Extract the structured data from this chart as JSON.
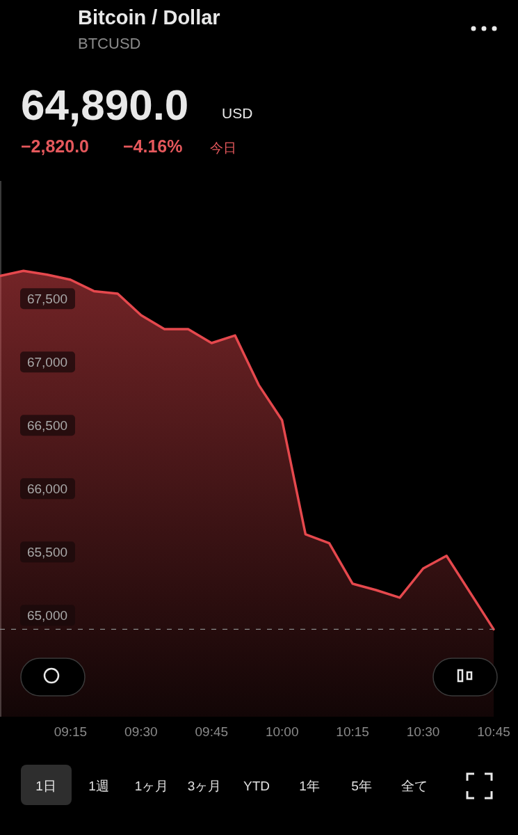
{
  "chart_data": {
    "type": "area",
    "title": "Bitcoin / Dollar",
    "subtitle": "BTCUSD",
    "annotations": [
      "64,890.0",
      "USD",
      "−2,820.0",
      "−4.16%",
      "今日",
      "1日",
      "1週",
      "1ヶ月",
      "3ヶ月",
      "YTD",
      "1年",
      "5年",
      "全て"
    ],
    "x": [
      9.0,
      9.083,
      9.167,
      9.25,
      9.333,
      9.417,
      9.5,
      9.583,
      9.667,
      9.75,
      9.833,
      9.917,
      10.0,
      10.083,
      10.167,
      10.25,
      10.333,
      10.417,
      10.5,
      10.583,
      10.75
    ],
    "series": [
      {
        "color": "#e5484d",
        "values": [
          67680,
          67720,
          67690,
          67650,
          67560,
          67540,
          67370,
          67260,
          67260,
          67150,
          67210,
          66820,
          66540,
          65640,
          65570,
          65250,
          65200,
          65140,
          65370,
          65470,
          64890
        ]
      }
    ],
    "xlim": [
      9.0,
      10.75
    ],
    "ylim": [
      64200,
      68430
    ],
    "xticks": [
      {
        "value": 9.25,
        "label": "09:15"
      },
      {
        "value": 9.5,
        "label": "09:30"
      },
      {
        "value": 9.75,
        "label": "09:45"
      },
      {
        "value": 10.0,
        "label": "10:00"
      },
      {
        "value": 10.25,
        "label": "10:15"
      },
      {
        "value": 10.5,
        "label": "10:30"
      },
      {
        "value": 10.75,
        "label": "10:45"
      }
    ],
    "yticks": [
      {
        "value": 65000,
        "label": "65,000"
      },
      {
        "value": 65500,
        "label": "65,500"
      },
      {
        "value": 66000,
        "label": "66,000"
      },
      {
        "value": 66500,
        "label": "66,500"
      },
      {
        "value": 67000,
        "label": "67,000"
      },
      {
        "value": 67500,
        "label": "67,500"
      }
    ],
    "ref_lines": [
      {
        "axis": "y",
        "value": 64890,
        "line_style": "dashed",
        "color": "#8a8a8a"
      }
    ]
  }
}
